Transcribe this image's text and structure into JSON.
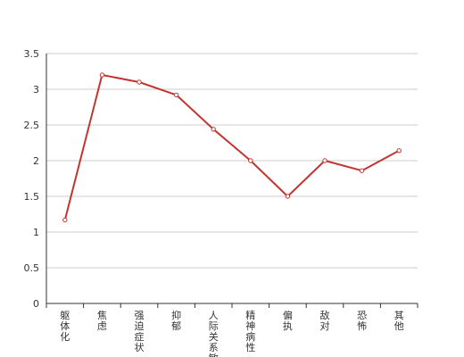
{
  "chart_data": {
    "type": "line",
    "title": "",
    "xlabel": "",
    "ylabel": "",
    "categories": [
      "躯体化",
      "焦虑",
      "强迫症状",
      "抑郁",
      "人际关系敏感",
      "精神病性",
      "偏执",
      "敌对",
      "恐怖",
      "其他"
    ],
    "series": [
      {
        "values": [
          1.17,
          3.2,
          3.1,
          2.92,
          2.44,
          2.0,
          1.5,
          2.0,
          1.86,
          2.14
        ]
      }
    ],
    "ylim": [
      0,
      3.5
    ],
    "yticks": [
      0,
      0.5,
      1,
      1.5,
      2,
      2.5,
      3,
      3.5
    ],
    "ytick_labels": [
      "0",
      "0.5",
      "1",
      "1.5",
      "2",
      "2.5",
      "3",
      "3.5"
    ],
    "grid": true,
    "legend": "none",
    "line_color": "#c23531"
  }
}
